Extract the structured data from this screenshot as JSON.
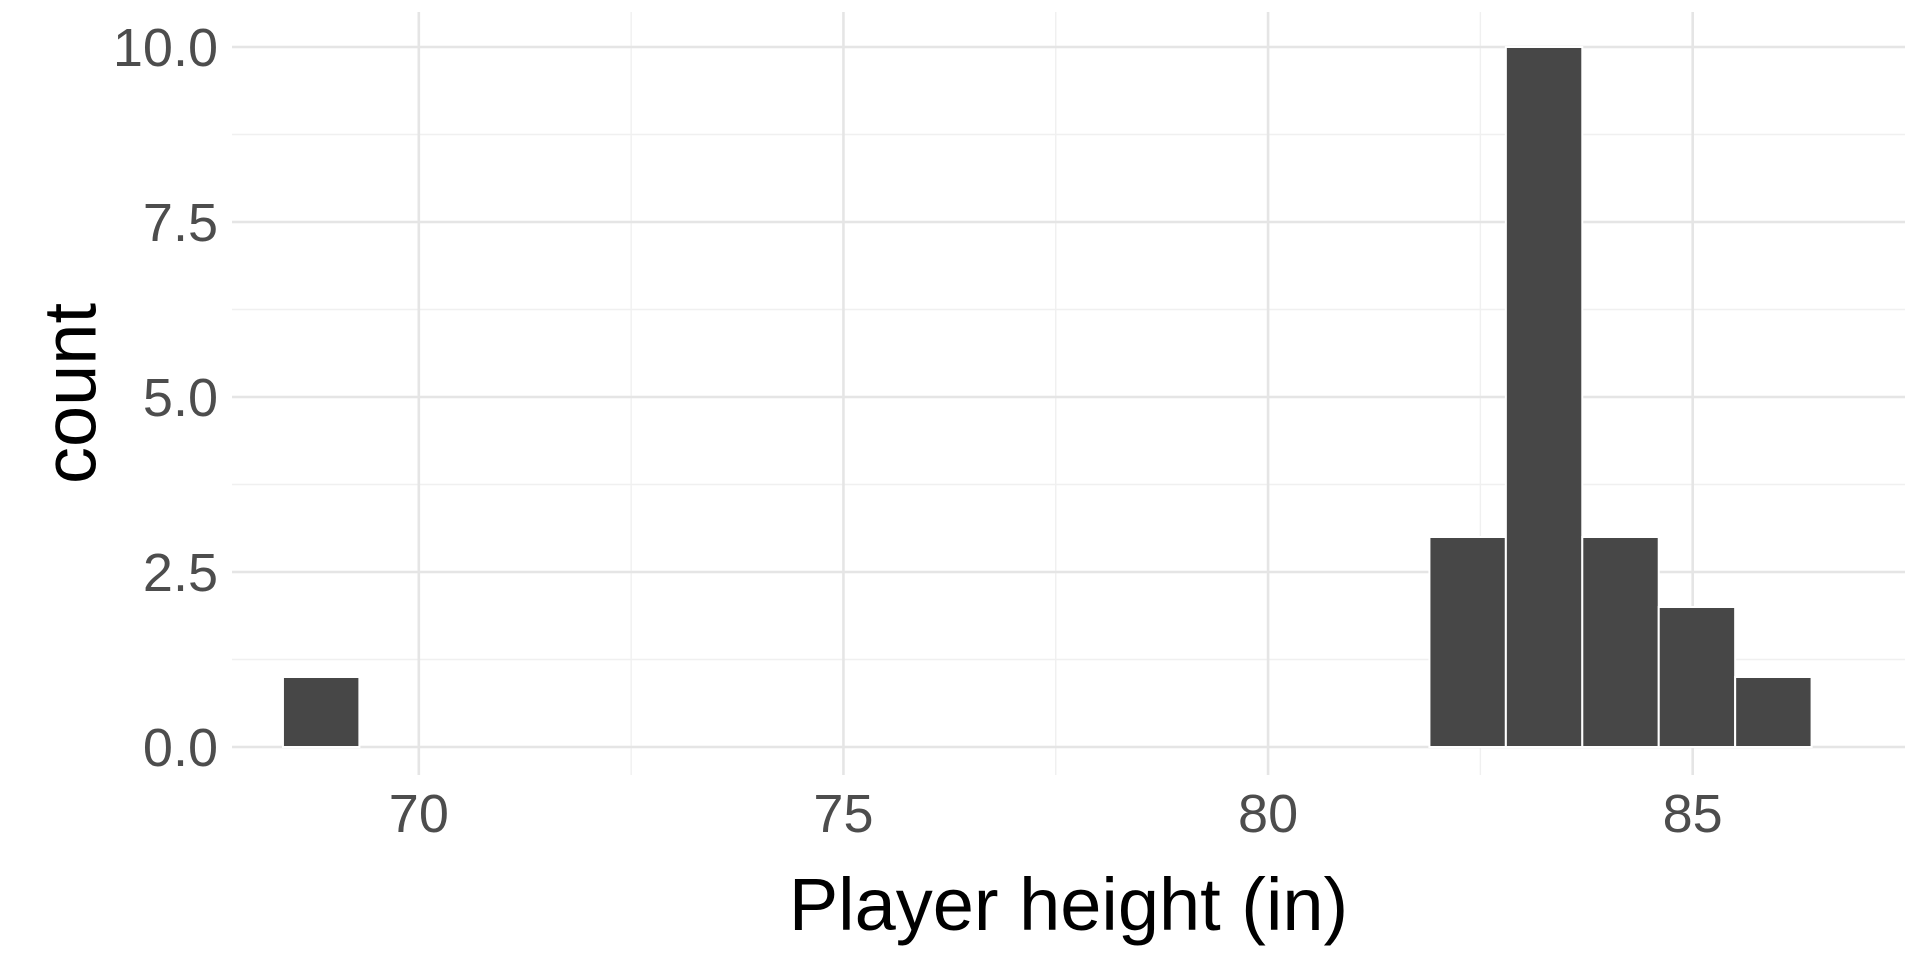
{
  "chart_data": {
    "type": "bar",
    "subtype": "histogram",
    "title": "",
    "xlabel": "Player height (in)",
    "ylabel": "count",
    "xlim": [
      67.8,
      87.5
    ],
    "ylim": [
      -0.4,
      10.5
    ],
    "x_ticks": [
      70,
      75,
      80,
      85
    ],
    "x_tick_labels": [
      "70",
      "75",
      "80",
      "85"
    ],
    "y_ticks": [
      0,
      2.5,
      5,
      7.5,
      10
    ],
    "y_tick_labels": [
      "0.0",
      "2.5",
      "5.0",
      "7.5",
      "10.0"
    ],
    "grid": true,
    "legend": "none",
    "bar_color": "#474747",
    "bins": [
      {
        "x_start": 68.4,
        "x_end": 69.3,
        "count": 1
      },
      {
        "x_start": 81.9,
        "x_end": 82.8,
        "count": 3
      },
      {
        "x_start": 82.8,
        "x_end": 83.7,
        "count": 10
      },
      {
        "x_start": 83.7,
        "x_end": 84.6,
        "count": 3
      },
      {
        "x_start": 84.6,
        "x_end": 85.5,
        "count": 2
      },
      {
        "x_start": 85.5,
        "x_end": 86.4,
        "count": 1
      }
    ]
  }
}
